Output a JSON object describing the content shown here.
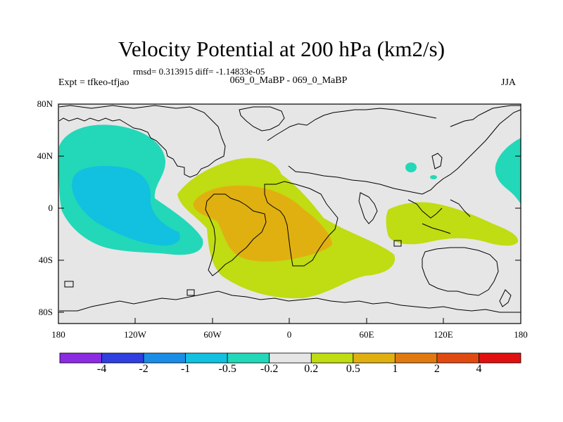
{
  "title": "Velocity Potential at 200 hPa (km2/s)",
  "stats_line": "rmsd= 0.313915 diff= -1.14833e-05",
  "expt_label": "Expt = tfkeo-tfjao",
  "comparison_label": "069_0_MaBP - 069_0_MaBP",
  "season": "JJA",
  "y_axis_ticks": [
    "80N",
    "40N",
    "0",
    "40S",
    "80S"
  ],
  "x_axis_ticks": [
    "180",
    "120W",
    "60W",
    "0",
    "60E",
    "120E",
    "180"
  ],
  "colorbar": {
    "colors": [
      "#8b2be2",
      "#2f3fe0",
      "#1a8ee6",
      "#12c0e0",
      "#22d8b8",
      "#e6e6e6",
      "#c0dc12",
      "#e0b010",
      "#e07a10",
      "#e04a10",
      "#e01010"
    ],
    "labels": [
      "-4",
      "-2",
      "-1",
      "-0.5",
      "-0.2",
      "0.2",
      "0.5",
      "1",
      "2",
      "4"
    ]
  },
  "background_color": "#e6e6e6"
}
